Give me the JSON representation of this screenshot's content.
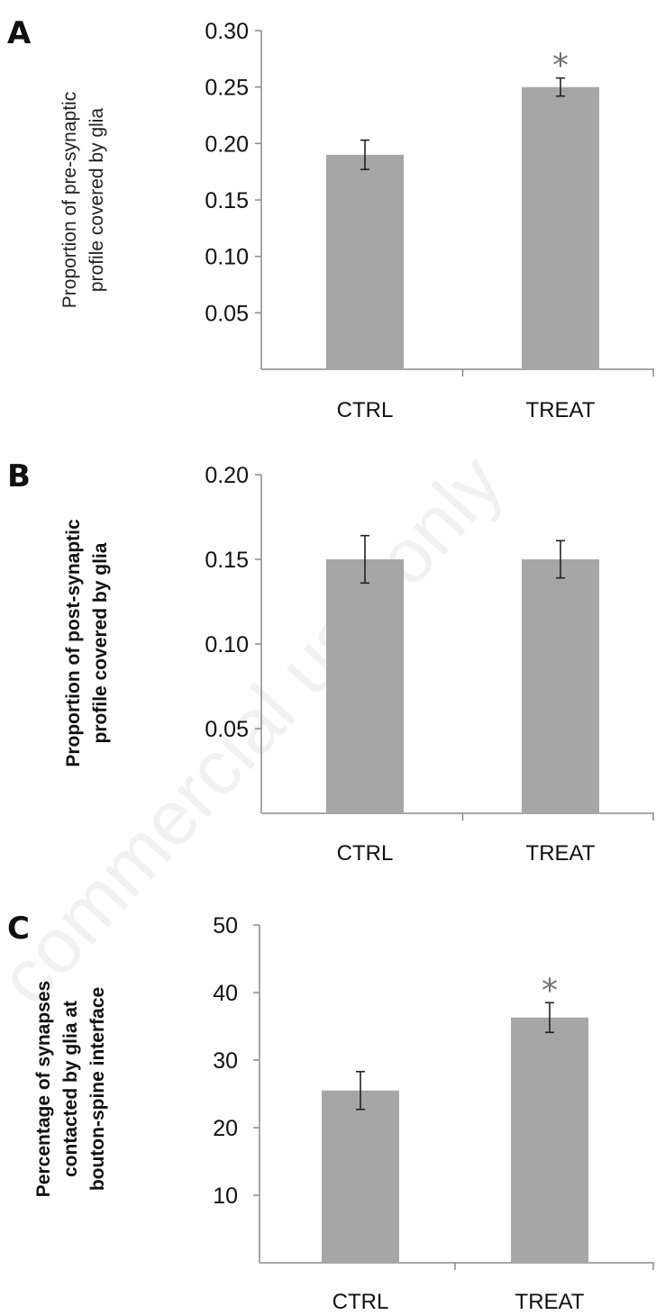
{
  "chart_data": [
    {
      "panel": "A",
      "type": "bar",
      "categories": [
        "CTRL",
        "TREAT"
      ],
      "values": [
        0.19,
        0.25
      ],
      "errors": [
        0.013,
        0.008
      ],
      "significance": [
        "",
        "*"
      ],
      "ylabel_lines": [
        "Proportion of pre-synaptic",
        "profile covered by glia"
      ],
      "ylabel_bold": false,
      "ylim": [
        0,
        0.3
      ],
      "yticks": [
        "0.05",
        "0.10",
        "0.15",
        "0.20",
        "0.25",
        "0.30"
      ],
      "bar_color": "#a6a6a6"
    },
    {
      "panel": "B",
      "type": "bar",
      "categories": [
        "CTRL",
        "TREAT"
      ],
      "values": [
        0.15,
        0.15
      ],
      "errors": [
        0.014,
        0.011
      ],
      "significance": [
        "",
        ""
      ],
      "ylabel_lines": [
        "Proportion of post-synaptic",
        "profile covered by glia"
      ],
      "ylabel_bold": true,
      "ylim": [
        0,
        0.2
      ],
      "yticks": [
        "0.05",
        "0.10",
        "0.15",
        "0.20"
      ],
      "bar_color": "#a6a6a6"
    },
    {
      "panel": "C",
      "type": "bar",
      "categories": [
        "CTRL",
        "TREAT"
      ],
      "values": [
        25.5,
        36.3
      ],
      "errors": [
        2.8,
        2.2
      ],
      "significance": [
        "",
        "*"
      ],
      "ylabel_lines": [
        "Percentage of synapses",
        "contacted by glia at",
        "bouton-spine interface"
      ],
      "ylabel_bold": true,
      "ylim": [
        0,
        50
      ],
      "yticks": [
        "10",
        "20",
        "30",
        "40",
        "50"
      ],
      "bar_color": "#a6a6a6"
    }
  ],
  "watermark": "commercial use only"
}
